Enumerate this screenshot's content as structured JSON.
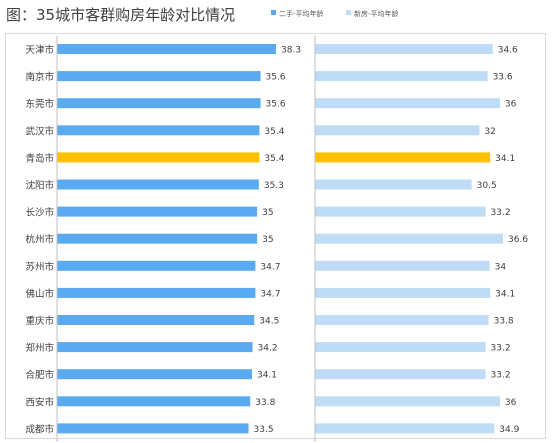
{
  "chart_data": {
    "type": "bar",
    "orientation": "horizontal",
    "title": "图：35城市客群购房年龄对比情况",
    "categories": [
      "天津市",
      "南京市",
      "东莞市",
      "武汉市",
      "青岛市",
      "沈阳市",
      "长沙市",
      "杭州市",
      "苏州市",
      "佛山市",
      "重庆市",
      "郑州市",
      "合肥市",
      "西安市",
      "成都市"
    ],
    "series": [
      {
        "name": "二手-平均年龄",
        "color": "#5aaaf2",
        "values": [
          38.3,
          35.6,
          35.6,
          35.4,
          35.4,
          35.3,
          35,
          35,
          34.7,
          34.7,
          34.5,
          34.2,
          34.1,
          33.8,
          33.5
        ]
      },
      {
        "name": "新房-平均年龄",
        "color": "#bfdcf7",
        "values": [
          34.6,
          33.6,
          36,
          32,
          34.1,
          30.5,
          33.2,
          36.6,
          34,
          34.1,
          33.8,
          33.2,
          33.2,
          36,
          34.9
        ]
      }
    ],
    "highlight": {
      "category": "青岛市",
      "color": "#ffc000"
    },
    "legend_position": "top",
    "grid": false,
    "axis_color": "#bfbfbf"
  }
}
